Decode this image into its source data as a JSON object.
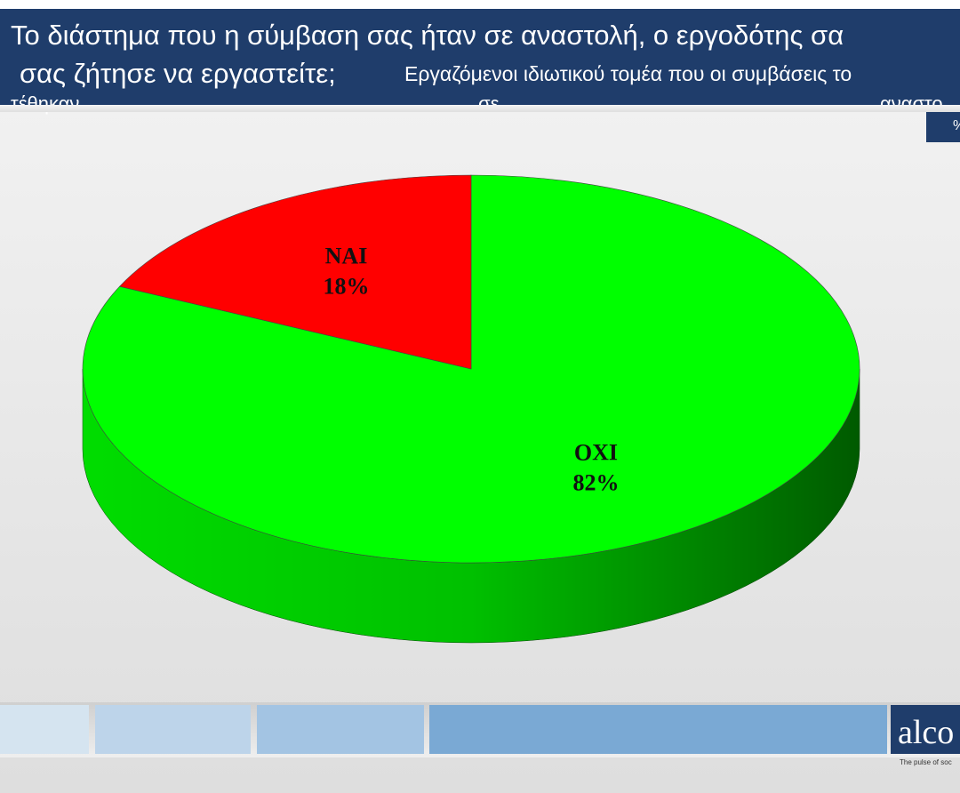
{
  "chart_data": {
    "type": "pie",
    "title": [
      "Το διάστημα που η σύμβαση σας ήταν σε αναστολή, ο εργοδότης σα",
      "σας ζήτησε να εργαστείτε;"
    ],
    "subtitle": [
      "Εργαζόμενοι ιδιωτικού τομέα που οι συμβάσεις το",
      "τέθηκαν",
      "σε",
      "αναστο"
    ],
    "unit_box": "%",
    "categories": [
      "ΝΑΙ",
      "ΟΧΙ"
    ],
    "values": [
      18,
      82
    ],
    "value_labels": [
      "18%",
      "82%"
    ],
    "colors": [
      "#ff0000",
      "#00ff00"
    ]
  },
  "logo": {
    "text": "alco",
    "tagline": "The pulse of soc"
  }
}
